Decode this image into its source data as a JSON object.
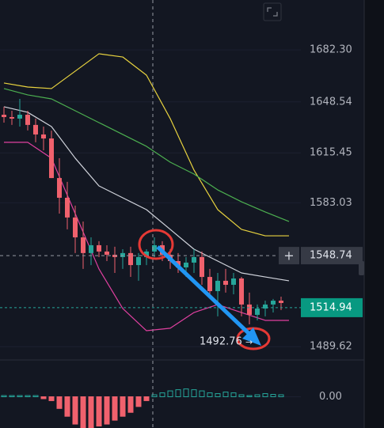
{
  "chart_data": {
    "type": "candlestick",
    "xlim": [
      -0.5,
      37.5
    ],
    "ylim": [
      1481,
      1714.7
    ],
    "yticks": [
      {
        "value": 1682.3,
        "label": "1682.30"
      },
      1648.54,
      1615.45,
      1583.03,
      1489.62
    ],
    "grid": true,
    "up_color": "#26a69a",
    "down_color": "#f0616d",
    "x": [
      0,
      1,
      2,
      3,
      4,
      5,
      6,
      7,
      8,
      9,
      10,
      11,
      12,
      13,
      14,
      15,
      16,
      17,
      18,
      19,
      20,
      21,
      22,
      23,
      24,
      25,
      26,
      27,
      28,
      29,
      30,
      31,
      32,
      33,
      34,
      35
    ],
    "open": [
      1640.2,
      1638.7,
      1637.7,
      1640.2,
      1633.6,
      1627.4,
      1624.8,
      1599.1,
      1586.3,
      1573.5,
      1560.6,
      1550.4,
      1555.5,
      1551.4,
      1549.3,
      1547.8,
      1550.4,
      1542.6,
      1547.8,
      1551.4,
      1555.5,
      1549.3,
      1545.2,
      1541.1,
      1544.2,
      1547.8,
      1534.9,
      1525.7,
      1532.4,
      1529.8,
      1533.9,
      1517.0,
      1510.3,
      1514.4,
      1517.0,
      1519.5
    ],
    "high": [
      1645.4,
      1642.8,
      1650.5,
      1642.8,
      1637.7,
      1632.5,
      1629.9,
      1612.0,
      1596.6,
      1581.2,
      1570.9,
      1560.6,
      1558.1,
      1555.5,
      1554.5,
      1552.9,
      1554.5,
      1550.4,
      1552.9,
      1560.6,
      1558.1,
      1552.9,
      1550.4,
      1547.8,
      1552.9,
      1551.4,
      1540.1,
      1537.5,
      1540.1,
      1537.5,
      1534.9,
      1524.7,
      1517.0,
      1519.5,
      1520.6,
      1522.1
    ],
    "low": [
      1635.1,
      1633.6,
      1632.5,
      1630.0,
      1622.3,
      1617.1,
      1599.1,
      1576.0,
      1565.8,
      1550.4,
      1540.1,
      1542.6,
      1547.8,
      1545.2,
      1537.5,
      1540.1,
      1534.9,
      1532.4,
      1542.6,
      1547.8,
      1545.2,
      1540.1,
      1537.5,
      1534.9,
      1537.5,
      1529.8,
      1522.1,
      1509.3,
      1524.7,
      1523.6,
      1509.3,
      1504.1,
      1506.7,
      1509.3,
      1511.8,
      1513.4
    ],
    "close": [
      1638.7,
      1637.7,
      1640.2,
      1633.6,
      1627.4,
      1624.8,
      1599.1,
      1586.3,
      1573.5,
      1560.6,
      1550.4,
      1555.5,
      1551.4,
      1549.3,
      1547.8,
      1550.4,
      1542.6,
      1547.8,
      1551.4,
      1555.5,
      1549.3,
      1545.2,
      1541.1,
      1544.2,
      1547.8,
      1534.9,
      1525.7,
      1532.4,
      1529.8,
      1533.9,
      1517.0,
      1510.3,
      1514.4,
      1517.0,
      1519.5,
      1518.0
    ],
    "lines": [
      {
        "color": "#e8d33f",
        "x": [
          0,
          3,
          6,
          9,
          12,
          15,
          18,
          21,
          24,
          27,
          30,
          33,
          36
        ],
        "values": [
          1660.8,
          1658.2,
          1657.2,
          1668.5,
          1679.8,
          1677.7,
          1665.9,
          1637.7,
          1604.3,
          1578.6,
          1565.8,
          1561.6,
          1561.6
        ]
      },
      {
        "color": "#4caf50",
        "x": [
          0,
          3,
          6,
          9,
          12,
          15,
          18,
          21,
          24,
          27,
          30,
          33,
          36
        ],
        "values": [
          1657.2,
          1653.1,
          1650.5,
          1642.8,
          1635.1,
          1627.4,
          1619.7,
          1609.4,
          1601.7,
          1591.4,
          1583.7,
          1577.1,
          1570.9
        ]
      },
      {
        "color": "#d1d4dc",
        "x": [
          0,
          3,
          6,
          9,
          12,
          15,
          18,
          21,
          24,
          27,
          30,
          33,
          36
        ],
        "values": [
          1645.4,
          1641.8,
          1632.5,
          1612.0,
          1594.0,
          1586.3,
          1578.6,
          1565.8,
          1552.9,
          1545.2,
          1537.5,
          1534.9,
          1532.4
        ]
      },
      {
        "color": "#e040a0",
        "x": [
          0,
          3,
          6,
          9,
          12,
          15,
          18,
          21,
          24,
          27,
          30,
          33,
          36
        ],
        "values": [
          1622.3,
          1622.3,
          1612.0,
          1576.0,
          1540.1,
          1514.4,
          1500.0,
          1501.6,
          1511.8,
          1517.0,
          1511.8,
          1506.7,
          1506.7
        ]
      }
    ],
    "crosshair_price": 1548.74,
    "last_price": 1514.94,
    "annotation": 1492.76,
    "histogram": {
      "ylim": [
        -8,
        8
      ],
      "yticks": [
        {
          "value": 0,
          "label": "0.00"
        }
      ],
      "values": [
        0.3,
        0.3,
        0.3,
        0.3,
        0.3,
        -0.5,
        -1,
        -3,
        -5,
        -7,
        -8,
        -8,
        -7.5,
        -7,
        -6,
        -5,
        -4,
        -2.5,
        -1,
        0.5,
        1,
        1.5,
        1.8,
        2,
        1.8,
        1.5,
        1,
        0.8,
        1.2,
        1,
        0.5,
        0.3,
        0.5,
        0.8,
        0.6,
        0.5
      ]
    }
  }
}
